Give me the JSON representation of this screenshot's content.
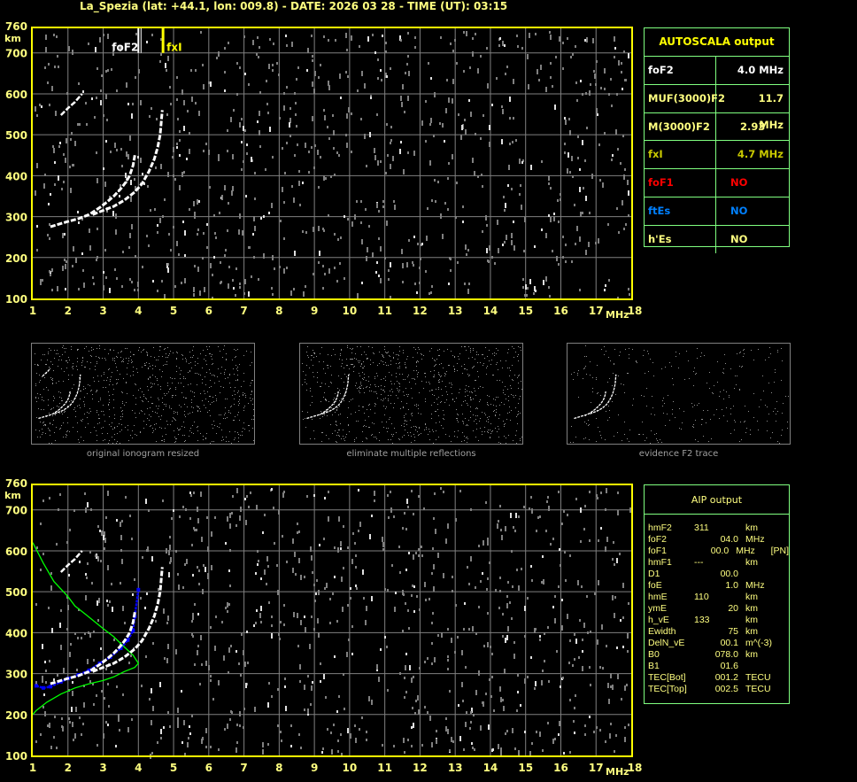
{
  "header": {
    "title": "La_Spezia (lat: +44.1, lon: 009.8) - DATE: 2026 03 28 - TIME (UT): 03:15"
  },
  "colors": {
    "axis": "#ffff00",
    "grid": "#808080",
    "trace": "#ffffff",
    "profile": "#00ff00",
    "fit": "#0000ff",
    "table_border": "#80ff80"
  },
  "chart_data": [
    {
      "type": "scatter",
      "title": "",
      "xlabel": "MHz",
      "ylabel": "km",
      "xlim": [
        1,
        18
      ],
      "ylim": [
        100,
        760
      ],
      "x_ticks": [
        "1",
        "2",
        "3",
        "4",
        "5",
        "6",
        "7",
        "8",
        "9",
        "10",
        "11",
        "12",
        "13",
        "14",
        "15",
        "16",
        "17",
        "18"
      ],
      "y_ticks": [
        "100",
        "200",
        "300",
        "400",
        "500",
        "600",
        "700",
        "760"
      ],
      "grid": true,
      "markers": [
        {
          "name": "foF2",
          "x": 4.0,
          "color": "#ffffff"
        },
        {
          "name": "fxI",
          "x": 4.7,
          "color": "#ffff00"
        }
      ],
      "series": [
        {
          "trace": "o",
          "points": [
            [
              1.5,
              275
            ],
            [
              1.8,
              283
            ],
            [
              2,
              288
            ],
            [
              2.3,
              295
            ],
            [
              2.6,
              305
            ],
            [
              2.9,
              322
            ],
            [
              3.1,
              335
            ],
            [
              3.3,
              350
            ],
            [
              3.5,
              368
            ],
            [
              3.65,
              385
            ],
            [
              3.75,
              400
            ],
            [
              3.85,
              425
            ],
            [
              3.9,
              450
            ]
          ]
        },
        {
          "trace": "x",
          "points": [
            [
              2.7,
              305
            ],
            [
              3,
              315
            ],
            [
              3.3,
              325
            ],
            [
              3.6,
              340
            ],
            [
              3.9,
              360
            ],
            [
              4.1,
              380
            ],
            [
              4.3,
              410
            ],
            [
              4.45,
              440
            ],
            [
              4.55,
              470
            ],
            [
              4.62,
              500
            ],
            [
              4.65,
              530
            ],
            [
              4.68,
              560
            ]
          ]
        },
        {
          "trace": "multiple",
          "points": [
            [
              1.8,
              548
            ],
            [
              2.0,
              565
            ],
            [
              2.2,
              580
            ],
            [
              2.4,
              600
            ]
          ]
        }
      ]
    },
    {
      "type": "line",
      "xlabel": "MHz",
      "ylabel": "km",
      "xlim": [
        1,
        18
      ],
      "ylim": [
        100,
        760
      ],
      "x_ticks": [
        "1",
        "2",
        "3",
        "4",
        "5",
        "6",
        "7",
        "8",
        "9",
        "10",
        "11",
        "12",
        "13",
        "14",
        "15",
        "16",
        "17",
        "18"
      ],
      "y_ticks": [
        "100",
        "200",
        "300",
        "400",
        "500",
        "600",
        "700",
        "760"
      ],
      "grid": true,
      "series": [
        {
          "trace": "profile",
          "color": "#00ff00",
          "points": [
            [
              1,
              620
            ],
            [
              1.3,
              570
            ],
            [
              1.6,
              525
            ],
            [
              2,
              488
            ],
            [
              2.2,
              465
            ],
            [
              2.5,
              445
            ],
            [
              3,
              410
            ],
            [
              3.3,
              390
            ],
            [
              3.6,
              365
            ],
            [
              3.85,
              345
            ],
            [
              4,
              325
            ],
            [
              3.9,
              315
            ],
            [
              3.6,
              305
            ],
            [
              3.3,
              292
            ],
            [
              3,
              283
            ],
            [
              2.6,
              275
            ],
            [
              2.2,
              265
            ],
            [
              1.8,
              250
            ],
            [
              1.4,
              230
            ],
            [
              1.1,
              210
            ],
            [
              1,
              200
            ]
          ]
        },
        {
          "trace": "fit",
          "color": "#0000ff",
          "points": [
            [
              1.1,
              270
            ],
            [
              1.3,
              265
            ],
            [
              1.5,
              268
            ],
            [
              1.8,
              280
            ],
            [
              2,
              288
            ],
            [
              2.3,
              297
            ],
            [
              2.6,
              308
            ],
            [
              2.9,
              325
            ],
            [
              3.2,
              340
            ],
            [
              3.5,
              362
            ],
            [
              3.7,
              382
            ],
            [
              3.85,
              405
            ],
            [
              3.9,
              440
            ],
            [
              4,
              505
            ]
          ]
        },
        {
          "trace": "o",
          "points": [
            [
              1.5,
              275
            ],
            [
              1.8,
              283
            ],
            [
              2,
              288
            ],
            [
              2.3,
              295
            ],
            [
              2.6,
              305
            ],
            [
              2.9,
              322
            ],
            [
              3.1,
              335
            ],
            [
              3.3,
              350
            ],
            [
              3.5,
              368
            ],
            [
              3.65,
              385
            ],
            [
              3.75,
              400
            ],
            [
              3.85,
              425
            ],
            [
              3.9,
              450
            ]
          ]
        },
        {
          "trace": "x",
          "points": [
            [
              2.7,
              305
            ],
            [
              3,
              315
            ],
            [
              3.3,
              325
            ],
            [
              3.6,
              340
            ],
            [
              3.9,
              360
            ],
            [
              4.1,
              380
            ],
            [
              4.3,
              410
            ],
            [
              4.45,
              440
            ],
            [
              4.55,
              470
            ],
            [
              4.62,
              500
            ],
            [
              4.65,
              530
            ],
            [
              4.68,
              560
            ]
          ]
        },
        {
          "trace": "multiple",
          "points": [
            [
              1.8,
              548
            ],
            [
              2.0,
              565
            ],
            [
              2.2,
              580
            ],
            [
              2.4,
              600
            ]
          ]
        }
      ]
    }
  ],
  "thumbnails": [
    {
      "caption": "original ionogram resized"
    },
    {
      "caption": "eliminate multiple reflections"
    },
    {
      "caption": "evidence F2 trace"
    }
  ],
  "autoscala": {
    "title": "AUTOSCALA output",
    "rows": [
      {
        "label": "foF2",
        "value": "4.0 MHz",
        "color": "#ffffff"
      },
      {
        "label": "MUF(3000)F2",
        "value": "11.7 MHz",
        "color": "#ffff80"
      },
      {
        "label": "M(3000)F2",
        "value": "2.93",
        "color": "#ffff80"
      },
      {
        "label": "fxI",
        "value": "4.7 MHz",
        "color": "#c8c800"
      },
      {
        "label": "foF1",
        "value": "NO",
        "color": "#ff0000"
      },
      {
        "label": "ftEs",
        "value": "NO",
        "color": "#0080ff"
      },
      {
        "label": "h'Es",
        "value": "NO",
        "color": "#ffff80"
      }
    ]
  },
  "aip": {
    "title": "AIP output",
    "rows": [
      {
        "name": "hmF2",
        "value": "311",
        "unit": "km",
        "extra": ""
      },
      {
        "name": "foF2",
        "value": "04.0",
        "unit": "MHz",
        "extra": ""
      },
      {
        "name": "foF1",
        "value": "00.0",
        "unit": "MHz",
        "extra": "[PN]"
      },
      {
        "name": "hmF1",
        "value": "---",
        "unit": "km",
        "extra": ""
      },
      {
        "name": "D1",
        "value": "00.0",
        "unit": "",
        "extra": ""
      },
      {
        "name": "foE",
        "value": "1.0",
        "unit": "MHz",
        "extra": ""
      },
      {
        "name": "hmE",
        "value": "110",
        "unit": "km",
        "extra": ""
      },
      {
        "name": "ymE",
        "value": "20",
        "unit": "km",
        "extra": ""
      },
      {
        "name": "h_vE",
        "value": "133",
        "unit": "km",
        "extra": ""
      },
      {
        "name": "Ewidth",
        "value": "75",
        "unit": "km",
        "extra": ""
      },
      {
        "name": "DelN_vE",
        "value": "00.1",
        "unit": "m^(-3)",
        "extra": ""
      },
      {
        "name": "B0",
        "value": "078.0",
        "unit": "km",
        "extra": ""
      },
      {
        "name": "B1",
        "value": "01.6",
        "unit": "",
        "extra": ""
      },
      {
        "name": "TEC[Bot]",
        "value": "001.2",
        "unit": "TECU",
        "extra": ""
      },
      {
        "name": "TEC[Top]",
        "value": "002.5",
        "unit": "TECU",
        "extra": ""
      }
    ]
  }
}
